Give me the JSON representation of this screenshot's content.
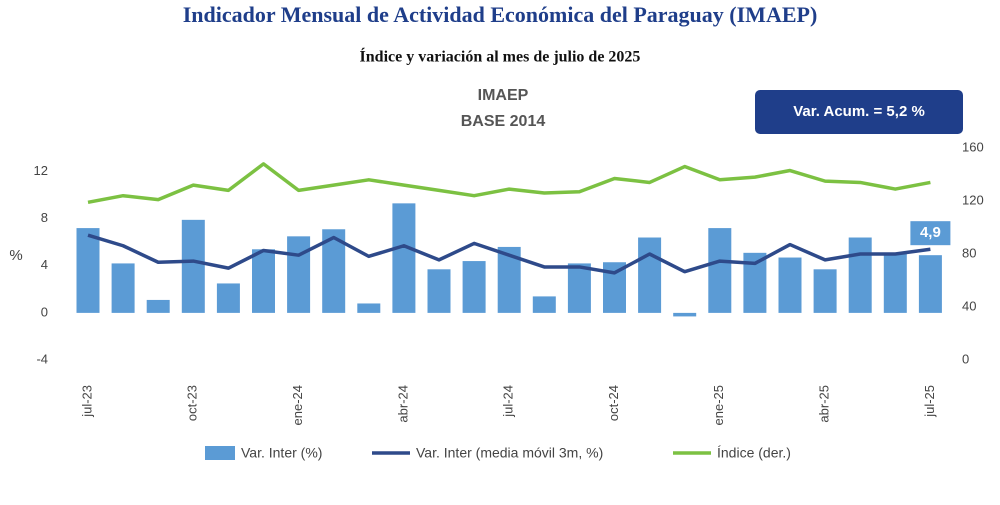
{
  "chart_data": {
    "type": "bar-line",
    "title": "Indicador Mensual de Actividad Económica del Paraguay (IMAEP)",
    "subtitle": "Índice y variación al mes de julio de 2025",
    "inner_title": [
      "IMAEP",
      "BASE 2014"
    ],
    "annotation": "Var. Acum. =  5,2 %",
    "ylabel": "%",
    "categories": [
      "jul-23",
      null,
      null,
      "oct-23",
      null,
      null,
      "ene-24",
      null,
      null,
      "abr-24",
      null,
      null,
      "jul-24",
      null,
      null,
      "oct-24",
      null,
      null,
      "ene-25",
      null,
      null,
      "abr-25",
      null,
      null,
      "jul-25"
    ],
    "series": [
      {
        "name": "Var. Inter (%)",
        "color": "#5b9bd5",
        "kind": "bar",
        "values": [
          7.2,
          4.2,
          1.1,
          7.9,
          2.5,
          5.4,
          6.5,
          7.1,
          0.8,
          9.3,
          3.7,
          4.4,
          5.6,
          1.4,
          4.2,
          4.3,
          6.4,
          -0.3,
          7.2,
          5.1,
          4.7,
          3.7,
          6.4,
          5.0,
          4.9
        ],
        "value_labels": [
          null,
          null,
          null,
          null,
          null,
          null,
          null,
          null,
          null,
          null,
          null,
          null,
          null,
          null,
          null,
          null,
          null,
          null,
          null,
          null,
          null,
          null,
          null,
          null,
          "4,9"
        ]
      },
      {
        "name": "Var. Inter (media móvil 3m, %)",
        "color": "#2e4a8a",
        "kind": "line",
        "values": [
          6.6,
          5.7,
          4.3,
          4.4,
          3.8,
          5.3,
          4.9,
          6.4,
          4.8,
          5.7,
          4.5,
          5.9,
          4.9,
          3.9,
          3.9,
          3.4,
          5.0,
          3.5,
          4.4,
          4.2,
          5.8,
          4.5,
          5.0,
          5.0,
          5.4
        ]
      },
      {
        "name": "Índice (der.)",
        "color": "#7cc142",
        "kind": "line",
        "axis": "y2",
        "values": [
          119,
          124,
          121,
          132,
          128,
          148,
          128,
          132,
          136,
          132,
          128,
          124,
          129,
          126,
          127,
          137,
          134,
          146,
          136,
          138,
          143,
          135,
          134,
          129,
          134
        ]
      }
    ],
    "ylim": [
      -4,
      14
    ],
    "yticks": [
      -4,
      0,
      4,
      8,
      12
    ],
    "y2lim": [
      0,
      160
    ],
    "y2ticks": [
      0,
      40,
      80,
      120,
      160
    ]
  }
}
